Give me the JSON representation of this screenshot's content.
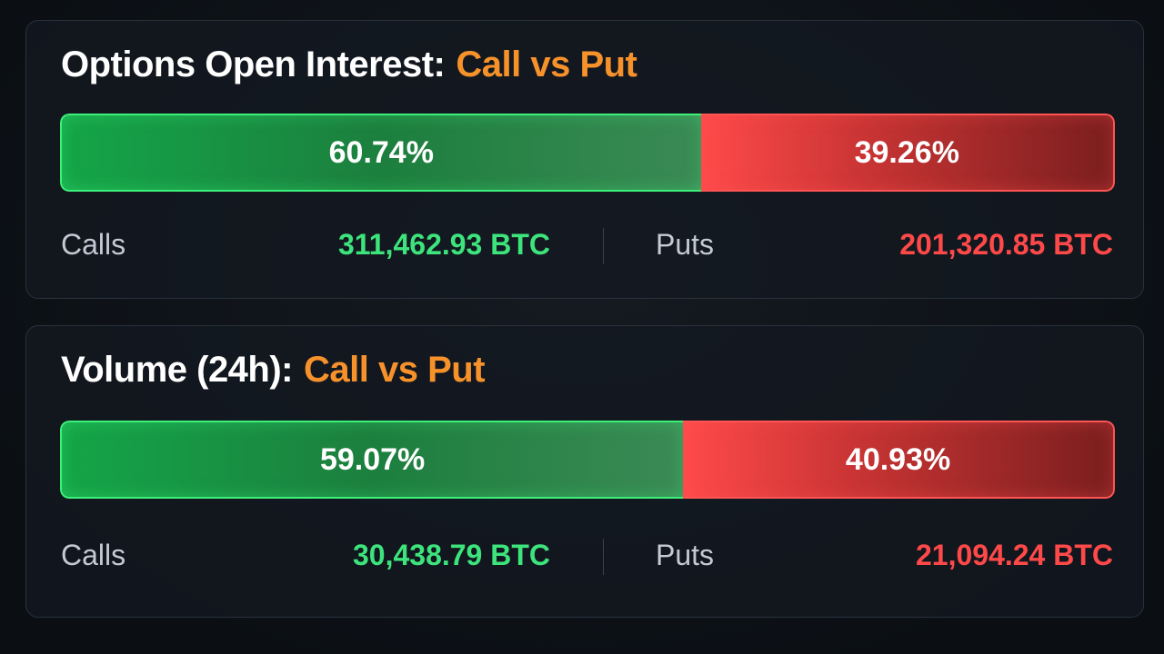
{
  "panels": [
    {
      "title": "Options Open Interest:",
      "title_highlight": "Call vs Put",
      "call_share": {
        "value": 60.74,
        "label": "60.74%"
      },
      "put_share": {
        "value": 39.26,
        "label": "39.26%"
      },
      "calls_label": "Calls",
      "calls_value": "311,462.93 BTC",
      "puts_label": "Puts",
      "puts_value": "201,320.85 BTC"
    },
    {
      "title": "Volume (24h):",
      "title_highlight": "Call vs Put",
      "call_share": {
        "value": 59.07,
        "label": "59.07%"
      },
      "put_share": {
        "value": 40.93,
        "label": "40.93%"
      },
      "calls_label": "Calls",
      "calls_value": "30,438.79 BTC",
      "puts_label": "Puts",
      "puts_value": "21,094.24 BTC"
    }
  ]
}
